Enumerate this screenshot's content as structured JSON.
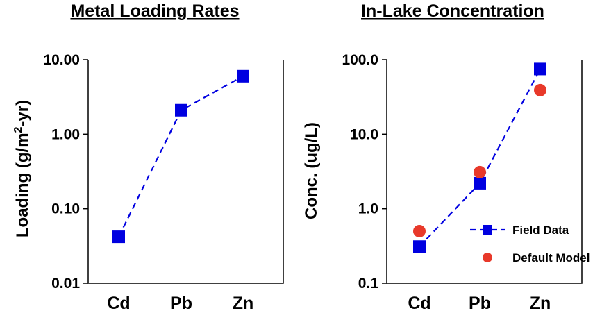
{
  "chart_data": [
    {
      "type": "line",
      "title": "Metal Loading Rates",
      "ylabel": "Loading (g/m2-yr)",
      "ylabel_parts": {
        "pre": "Loading (g/m",
        "sup": "2",
        "post": "-yr)"
      },
      "xlabel": "",
      "yscale": "log",
      "ylim": [
        0.01,
        10
      ],
      "yticks": [
        "0.01",
        "0.10",
        "1.00",
        "10.00"
      ],
      "categories": [
        "Cd",
        "Pb",
        "Zn"
      ],
      "legend": "none",
      "grid": false,
      "series": [
        {
          "name": "",
          "marker": "square",
          "line": "dashed",
          "color": "#0000e0",
          "values": [
            0.042,
            2.1,
            6.0
          ]
        }
      ]
    },
    {
      "type": "line",
      "title": "In-Lake Concentration",
      "ylabel": "Conc. (ug/L)",
      "xlabel": "",
      "yscale": "log",
      "ylim": [
        0.1,
        100
      ],
      "yticks": [
        "0.1",
        "1.0",
        "10.0",
        "100.0"
      ],
      "categories": [
        "Cd",
        "Pb",
        "Zn"
      ],
      "legend": "bottom-right",
      "grid": false,
      "series": [
        {
          "name": "Field Data",
          "marker": "square",
          "line": "dashed",
          "color": "#0000e0",
          "values": [
            0.31,
            2.2,
            75
          ]
        },
        {
          "name": "Default Model",
          "marker": "circle",
          "line": "none",
          "color": "#e8392a",
          "values": [
            0.5,
            3.1,
            39
          ]
        }
      ]
    }
  ]
}
